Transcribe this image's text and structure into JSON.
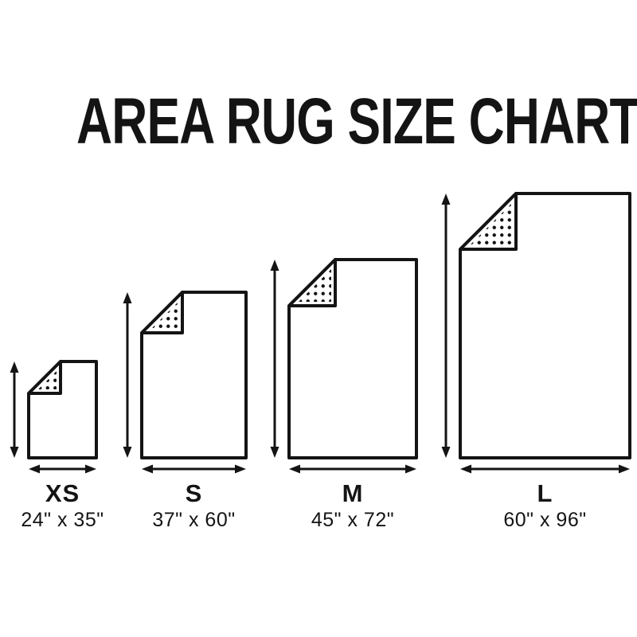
{
  "title": "AREA RUG SIZE CHART",
  "colors": {
    "ink": "#141414",
    "background": "#ffffff"
  },
  "chart_data": {
    "type": "table",
    "title": "AREA RUG SIZE CHART",
    "columns": [
      "size_code",
      "width_inches",
      "height_inches",
      "label"
    ],
    "rows": [
      [
        "XS",
        24,
        35,
        "24\" x 35\""
      ],
      [
        "S",
        37,
        60,
        "37\" x 60\""
      ],
      [
        "M",
        45,
        72,
        "45\" x 72\""
      ],
      [
        "L",
        60,
        96,
        "60\" x 96\""
      ]
    ]
  },
  "sizes": [
    {
      "code": "XS",
      "width_in": 24,
      "height_in": 35,
      "label": "24\" x 35\""
    },
    {
      "code": "S",
      "width_in": 37,
      "height_in": 60,
      "label": "37\" x 60\""
    },
    {
      "code": "M",
      "width_in": 45,
      "height_in": 72,
      "label": "45\" x 72\""
    },
    {
      "code": "L",
      "width_in": 60,
      "height_in": 96,
      "label": "60\" x 96\""
    }
  ]
}
